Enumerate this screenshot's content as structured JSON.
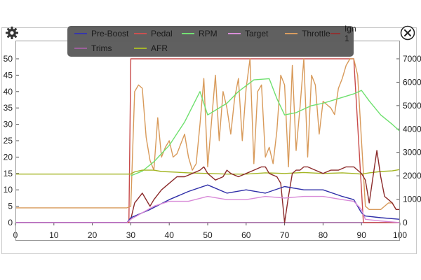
{
  "toolbar": {
    "settings_icon": "gear-icon",
    "close_icon": "close-circle-icon"
  },
  "chart_data": {
    "type": "line",
    "title": "",
    "xlabel": "",
    "ylabel": "",
    "xlim": [
      0,
      100
    ],
    "ylim_left": [
      0,
      50
    ],
    "ylim_right": [
      0,
      7000
    ],
    "x_ticks": [
      "0",
      "10",
      "20",
      "30",
      "40",
      "50",
      "60",
      "70",
      "80",
      "90",
      "100"
    ],
    "y_left_ticks": [
      "0",
      "5",
      "10",
      "15",
      "20",
      "25",
      "30",
      "35",
      "40",
      "45",
      "50"
    ],
    "y_right_ticks": [
      "0",
      "1000",
      "2000",
      "3000",
      "4000",
      "5000",
      "6000",
      "7000"
    ],
    "grid": false,
    "legend_position": "top",
    "series": [
      {
        "name": "Pre-Boost",
        "color": "#2f2fa8",
        "axis": "left",
        "x": [
          0,
          29,
          30,
          35,
          40,
          45,
          50,
          55,
          60,
          65,
          70,
          75,
          80,
          85,
          88,
          90,
          91,
          95,
          100
        ],
        "y": [
          0,
          0,
          1.5,
          4,
          7,
          9.5,
          11.5,
          9,
          10,
          9,
          11,
          10,
          10,
          8,
          7,
          3,
          2,
          1.5,
          1
        ]
      },
      {
        "name": "Pedal",
        "color": "#c84a4a",
        "axis": "left",
        "x": [
          0,
          29.5,
          30,
          88,
          89,
          90.5,
          91,
          100
        ],
        "y": [
          0,
          0,
          50,
          50,
          30,
          0,
          0,
          0
        ]
      },
      {
        "name": "RPM",
        "color": "#6ee06e",
        "axis": "right",
        "x": [
          30,
          33,
          36,
          40,
          44,
          48,
          50,
          52,
          55,
          58,
          62,
          66,
          68,
          70,
          73,
          77,
          80,
          84,
          88,
          90,
          92,
          95,
          98,
          100
        ],
        "y": [
          2000,
          2200,
          2600,
          3300,
          4300,
          5600,
          4600,
          4800,
          5100,
          5600,
          6100,
          6150,
          5300,
          4600,
          4700,
          5000,
          5100,
          5300,
          5500,
          5650,
          5200,
          4600,
          4200,
          3900
        ]
      },
      {
        "name": "Target",
        "color": "#d88ad8",
        "axis": "left",
        "x": [
          0,
          29,
          30,
          33,
          36,
          40,
          45,
          50,
          55,
          60,
          65,
          70,
          75,
          80,
          85,
          88,
          90,
          91,
          95,
          100
        ],
        "y": [
          0,
          0,
          1,
          3,
          5,
          6.5,
          6.5,
          8,
          7,
          7,
          8,
          7.5,
          8,
          8,
          7,
          6.5,
          4,
          1,
          0.5,
          0
        ]
      },
      {
        "name": "Throttle",
        "color": "#d89a5a",
        "axis": "left",
        "x": [
          0,
          29,
          30,
          31,
          32,
          33,
          34,
          35,
          36,
          37,
          38,
          39,
          40,
          41,
          42,
          43,
          44,
          45,
          46,
          47,
          48,
          49,
          50,
          51,
          52,
          53,
          54,
          55,
          56,
          57,
          58,
          59,
          60,
          61,
          62,
          63,
          64,
          65,
          66,
          67,
          68,
          69,
          70,
          71,
          72,
          73,
          74,
          75,
          76,
          77,
          78,
          79,
          80,
          81,
          82,
          83,
          84,
          85,
          86,
          87,
          88,
          89,
          90,
          91,
          92,
          93,
          94,
          95,
          96,
          97,
          98,
          99,
          100
        ],
        "y": [
          4.5,
          4.5,
          5,
          40,
          42,
          41,
          26,
          19,
          16,
          32,
          20,
          23,
          25,
          20,
          21,
          24,
          27,
          20,
          16,
          18,
          30,
          44,
          17,
          31,
          45,
          25,
          40,
          35,
          27,
          38,
          44,
          25,
          41,
          50,
          18,
          40,
          42,
          20,
          23,
          18,
          28,
          45,
          42,
          17,
          48,
          22,
          35,
          50,
          20,
          45,
          42,
          27,
          37,
          36,
          35,
          33,
          41,
          44,
          48,
          50,
          50,
          45,
          25,
          5,
          4,
          4,
          4,
          4,
          5,
          6,
          6,
          4,
          4
        ]
      },
      {
        "name": "Ign 1",
        "color": "#8b2a2a",
        "axis": "left",
        "x": [
          0,
          29,
          30,
          31,
          33,
          35,
          36,
          38,
          40,
          42,
          44,
          46,
          48,
          49,
          50,
          51,
          52,
          54,
          55,
          56,
          58,
          60,
          62,
          64,
          65,
          66,
          68,
          69,
          70,
          71,
          72,
          73,
          74,
          75,
          76,
          78,
          80,
          82,
          84,
          86,
          88,
          89,
          90,
          91,
          92,
          93,
          94,
          95,
          96,
          97,
          98,
          99,
          100
        ],
        "y": [
          0,
          0,
          1,
          6,
          9,
          5,
          7,
          10,
          12,
          14,
          14,
          15,
          16,
          17,
          15,
          14,
          13,
          14,
          16,
          15,
          14,
          15,
          16,
          17,
          17,
          15,
          14,
          12,
          0,
          8,
          15,
          16,
          16,
          17,
          17,
          16,
          15,
          16,
          16,
          17,
          17,
          16,
          15,
          13,
          6,
          14,
          22,
          14,
          8,
          7,
          6,
          4,
          4
        ]
      },
      {
        "name": "Trims",
        "color": "#9a5a9a",
        "axis": "left",
        "x": [
          0,
          100
        ],
        "y": [
          0,
          0
        ]
      },
      {
        "name": "AFR",
        "color": "#a3b522",
        "axis": "left",
        "x": [
          0,
          30,
          31,
          33,
          36,
          38,
          40,
          45,
          50,
          55,
          60,
          65,
          70,
          75,
          80,
          85,
          88,
          90,
          92,
          95,
          98,
          100
        ],
        "y": [
          14.8,
          14.8,
          15.5,
          16,
          16,
          15.6,
          15.5,
          15.2,
          15,
          14.8,
          14.8,
          15.2,
          15,
          15.3,
          15,
          15.2,
          15,
          14.8,
          15.2,
          15.6,
          15.8,
          16.2
        ]
      }
    ]
  }
}
